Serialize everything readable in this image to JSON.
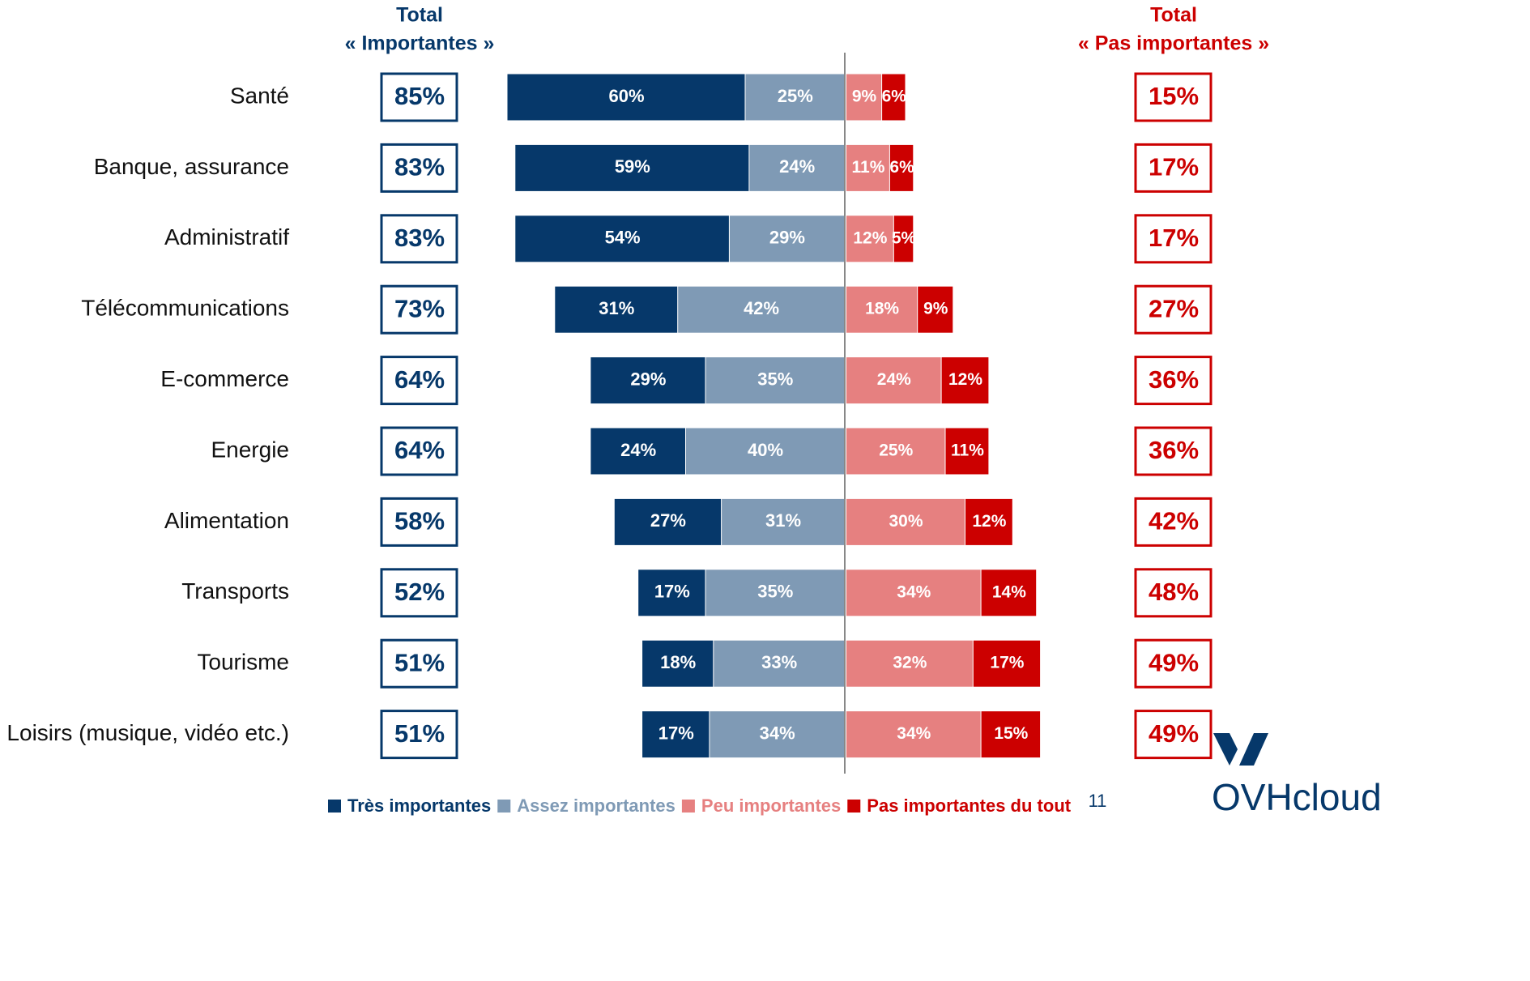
{
  "chart_data": {
    "type": "diverging_bar",
    "categories": [
      "Santé",
      "Banque, assurance",
      "Administratif",
      "Télécommunications",
      "E-commerce",
      "Energie",
      "Alimentation",
      "Transports",
      "Tourisme",
      "Loisirs (musique, vidéo etc.)"
    ],
    "series": [
      {
        "name": "Très importantes",
        "color": "#06386a",
        "side": "left",
        "values": [
          60,
          59,
          54,
          31,
          29,
          24,
          27,
          17,
          18,
          17
        ],
        "value_labels": [
          "60%",
          "59%",
          "54%",
          "31%",
          "29%",
          "24%",
          "27%",
          "17%",
          "18%",
          "17%"
        ]
      },
      {
        "name": "Assez importantes",
        "color": "#7f9ab5",
        "side": "left",
        "values": [
          25,
          24,
          29,
          42,
          35,
          40,
          31,
          35,
          33,
          34
        ],
        "value_labels": [
          "25%",
          "24%",
          "29%",
          "42%",
          "35%",
          "40%",
          "31%",
          "35%",
          "33%",
          "34%"
        ]
      },
      {
        "name": "Peu importantes",
        "color": "#e68080",
        "side": "right",
        "values": [
          9,
          11,
          12,
          18,
          24,
          25,
          30,
          34,
          32,
          34
        ],
        "value_labels": [
          "9%",
          "11%",
          "12%",
          "18%",
          "24%",
          "25%",
          "30%",
          "34%",
          "32%",
          "34%"
        ]
      },
      {
        "name": "Pas importantes du tout",
        "color": "#cc0000",
        "side": "right",
        "values": [
          6,
          6,
          5,
          9,
          12,
          11,
          12,
          14,
          17,
          15
        ],
        "value_labels": [
          "6%",
          "6%",
          "5%",
          "9%",
          "12%",
          "11%",
          "12%",
          "14%",
          "17%",
          "15%"
        ]
      }
    ],
    "totals": [
      {
        "title": [
          "Total",
          "« Importantes »"
        ],
        "color": "#06386a",
        "values": [
          85,
          83,
          83,
          73,
          64,
          64,
          58,
          52,
          51,
          51
        ],
        "value_labels": [
          "85%",
          "83%",
          "83%",
          "73%",
          "64%",
          "64%",
          "58%",
          "52%",
          "51%",
          "51%"
        ]
      },
      {
        "title": [
          "Total",
          "« Pas importantes »"
        ],
        "color": "#cc0000",
        "values": [
          15,
          17,
          17,
          27,
          36,
          36,
          42,
          48,
          49,
          49
        ],
        "value_labels": [
          "15%",
          "17%",
          "17%",
          "27%",
          "36%",
          "36%",
          "42%",
          "48%",
          "49%",
          "49%"
        ]
      }
    ]
  },
  "page_number": "11",
  "logo": "OVHcloud"
}
